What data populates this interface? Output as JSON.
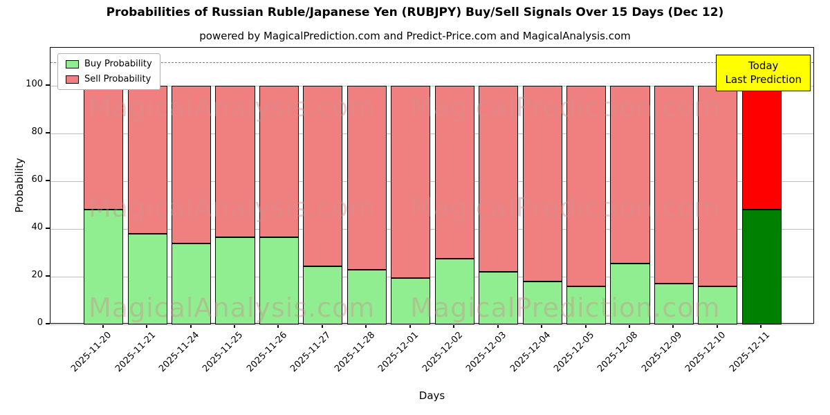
{
  "title": "Probabilities of Russian Ruble/Japanese Yen (RUBJPY) Buy/Sell Signals Over 15 Days (Dec 12)",
  "subtitle": "powered by MagicalPrediction.com and Predict-Price.com and MagicalAnalysis.com",
  "watermark": {
    "left": "MagicalAnalysis.com",
    "right": "MagicalPrediction.com"
  },
  "chart_data": {
    "type": "bar",
    "stacked": true,
    "xlabel": "Days",
    "ylabel": "Probability",
    "ylim": [
      0,
      116
    ],
    "yticks": [
      0,
      20,
      40,
      60,
      80,
      100
    ],
    "grid": "horizontal",
    "dashed_line_y": 110,
    "categories": [
      "2025-11-20",
      "2025-11-21",
      "2025-11-24",
      "2025-11-25",
      "2025-11-26",
      "2025-11-27",
      "2025-11-28",
      "2025-12-01",
      "2025-12-02",
      "2025-12-03",
      "2025-12-04",
      "2025-12-05",
      "2025-12-08",
      "2025-12-09",
      "2025-12-10",
      "2025-12-11"
    ],
    "series": [
      {
        "name": "Buy Probability",
        "color": "#90EE90",
        "values": [
          48,
          38,
          34,
          36.5,
          36.5,
          24.5,
          23,
          19.5,
          27.5,
          22,
          18,
          16,
          25.5,
          17,
          16,
          48
        ]
      },
      {
        "name": "Sell Probability",
        "color": "#F08080",
        "values": [
          52,
          62,
          66,
          63.5,
          63.5,
          75.5,
          77,
          80.5,
          72.5,
          78,
          82,
          84,
          74.5,
          83,
          84,
          52
        ]
      }
    ],
    "highlight_last": {
      "buy_color": "#008000",
      "sell_color": "#FF0000"
    },
    "legend": {
      "position": "upper left",
      "entries": [
        {
          "label": "Buy Probability",
          "color": "#90EE90"
        },
        {
          "label": "Sell Probability",
          "color": "#F08080"
        }
      ]
    },
    "annotation": {
      "lines": [
        "Today",
        "Last Prediction"
      ],
      "bg": "#FFFF00",
      "border": "#000000"
    }
  }
}
